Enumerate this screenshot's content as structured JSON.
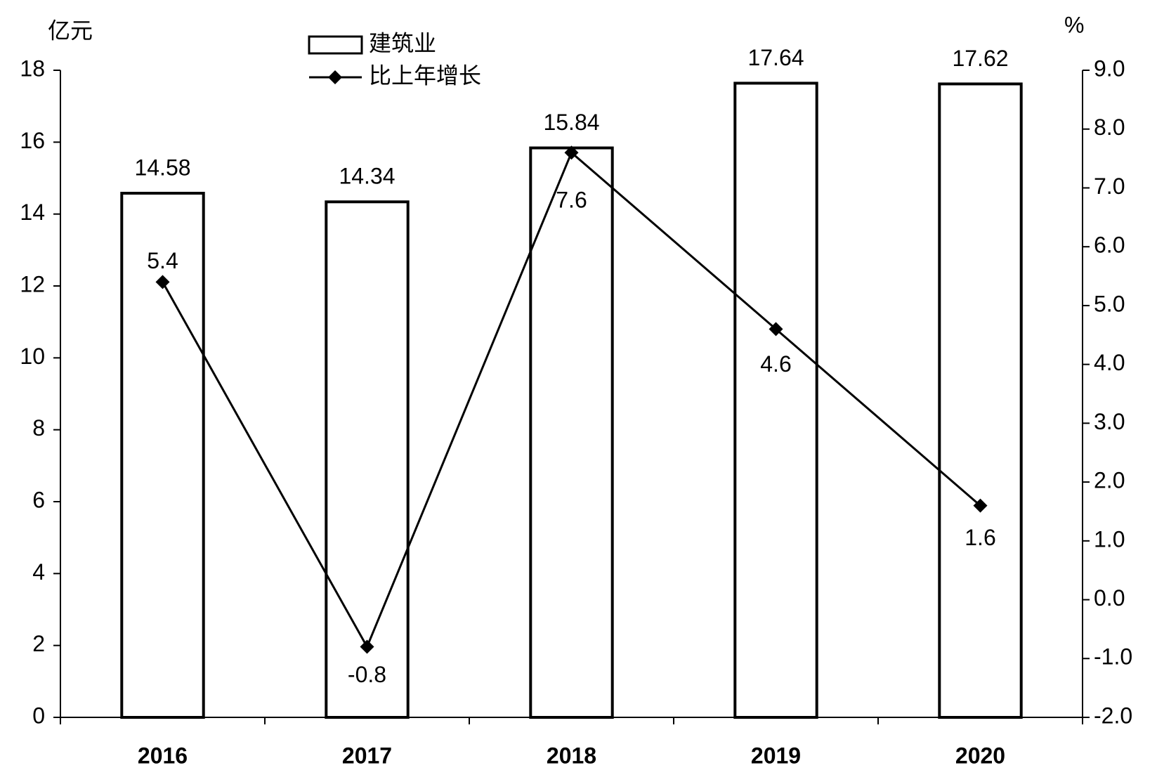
{
  "chart_data": {
    "type": "bar",
    "y_label": "亿元",
    "y2_label": "%",
    "categories": [
      "2016",
      "2017",
      "2018",
      "2019",
      "2020"
    ],
    "series": [
      {
        "name": "建筑业",
        "type": "bar",
        "color": "#ffffff",
        "values": [
          14.58,
          14.34,
          15.84,
          17.64,
          17.62
        ]
      },
      {
        "name": "比上年增长",
        "type": "line",
        "axis": "y2",
        "color": "#000000",
        "values": [
          5.4,
          -0.8,
          7.6,
          4.6,
          1.6
        ]
      }
    ],
    "ylim": [
      0,
      18
    ],
    "yticks": [
      0,
      2,
      4,
      6,
      8,
      10,
      12,
      14,
      16,
      18
    ],
    "y2lim": [
      -2,
      9
    ],
    "y2ticks": [
      {
        "value": -2,
        "label": "-2.0"
      },
      {
        "value": -1,
        "label": "-1.0"
      },
      {
        "value": 0,
        "label": "0.0"
      },
      {
        "value": 1,
        "label": "1.0"
      },
      {
        "value": 2,
        "label": "2.0"
      },
      {
        "value": 3,
        "label": "3.0"
      },
      {
        "value": 4,
        "label": "4.0"
      },
      {
        "value": 5,
        "label": "5.0"
      },
      {
        "value": 6,
        "label": "6.0"
      },
      {
        "value": 7,
        "label": "7.0"
      },
      {
        "value": 8,
        "label": "8.0"
      },
      {
        "value": 9,
        "label": "9.0"
      }
    ],
    "grid": false
  }
}
